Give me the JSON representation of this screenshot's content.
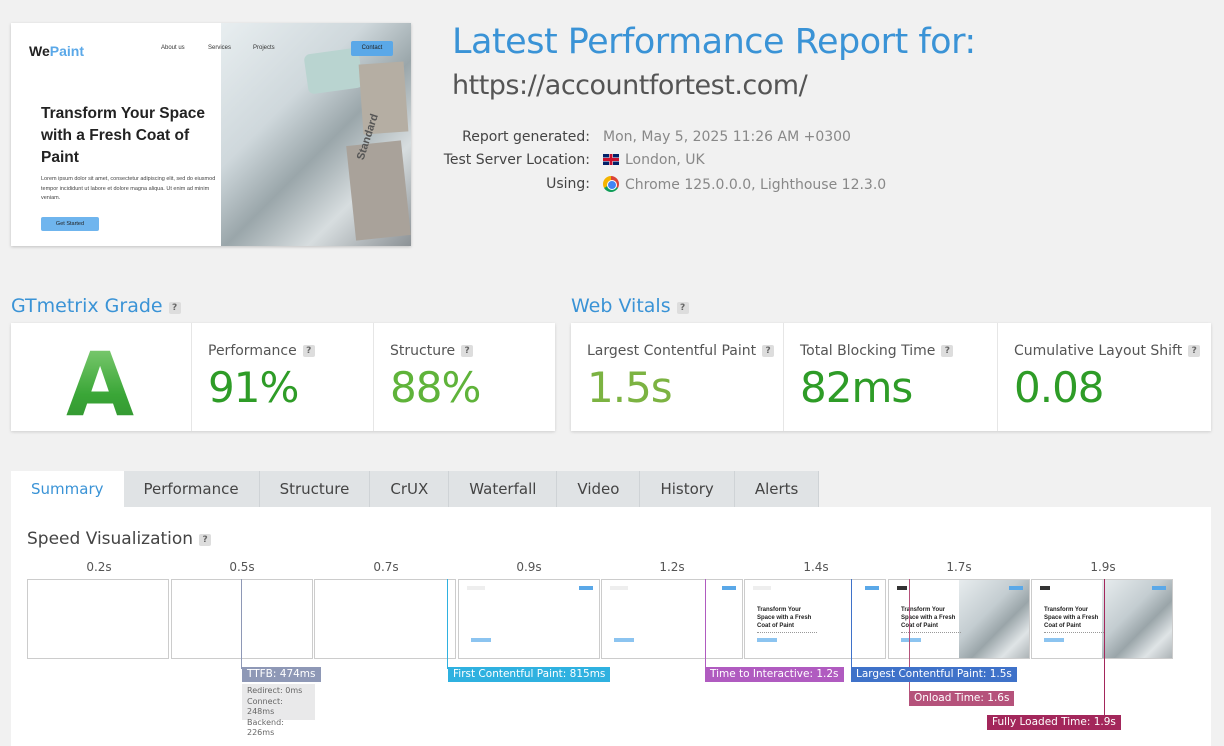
{
  "thumbnail": {
    "logo_we": "We",
    "logo_paint": "Paint",
    "nav": [
      "About us",
      "Services",
      "Projects"
    ],
    "contact": "Contact",
    "hero": "Transform Your Space with a Fresh Coat of Paint",
    "lorem": "Lorem ipsum dolor sit amet, consectetur adipiscing elit, sed do eiusmod tempor incididunt ut labore et dolore magna aliqua. Ut enim ad minim veniam.",
    "cta": "Get Started",
    "swatch_label": "Standard"
  },
  "report": {
    "title": "Latest Performance Report for:",
    "url": "https://accountfortest.com/",
    "generated_label": "Report generated:",
    "generated_value": "Mon, May 5, 2025 11:26 AM +0300",
    "location_label": "Test Server Location:",
    "location_value": "London, UK",
    "using_label": "Using:",
    "using_value": "Chrome 125.0.0.0, Lighthouse 12.3.0"
  },
  "grade": {
    "title": "GTmetrix Grade",
    "letter": "A",
    "performance_label": "Performance",
    "performance_value": "91%",
    "structure_label": "Structure",
    "structure_value": "88%"
  },
  "vitals": {
    "title": "Web Vitals",
    "lcp_label": "Largest Contentful Paint",
    "lcp_value": "1.5s",
    "tbt_label": "Total Blocking Time",
    "tbt_value": "82ms",
    "cls_label": "Cumulative Layout Shift",
    "cls_value": "0.08"
  },
  "tabs": [
    "Summary",
    "Performance",
    "Structure",
    "CrUX",
    "Waterfall",
    "Video",
    "History",
    "Alerts"
  ],
  "speed": {
    "title": "Speed Visualization",
    "ticks": [
      "0.2s",
      "0.5s",
      "0.7s",
      "0.9s",
      "1.2s",
      "1.4s",
      "1.7s",
      "1.9s"
    ],
    "frame_hero": "Transform Your Space with a Fresh Coat of Paint",
    "ttfb": "TTFB: 474ms",
    "redirect": "Redirect: 0ms",
    "connect": "Connect: 248ms",
    "backend": "Backend: 226ms",
    "fcp": "First Contentful Paint: 815ms",
    "tti": "Time to Interactive: 1.2s",
    "lcp": "Largest Contentful Paint: 1.5s",
    "onload": "Onload Time: 1.6s",
    "fully": "Fully Loaded Time: 1.9s"
  },
  "colors": {
    "accent": "#3a93d6",
    "grade_green": "#4bb543",
    "ttfb": "#8e98b6",
    "fcp": "#2fb1e0",
    "tti": "#b05bc0",
    "lcp": "#3f72c9",
    "onload": "#b5527b",
    "fully": "#a3275b"
  },
  "help_glyph": "?"
}
